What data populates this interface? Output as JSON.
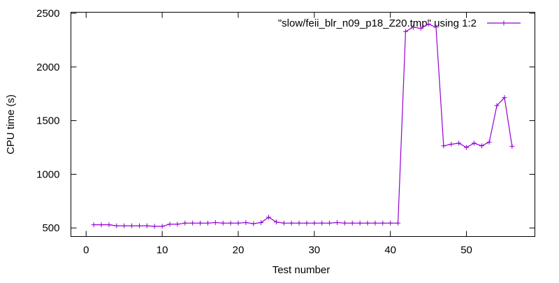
{
  "chart_data": {
    "type": "line",
    "title": "",
    "xlabel": "Test number",
    "ylabel": "CPU time (s)",
    "xlim": [
      -2,
      59
    ],
    "ylim": [
      420,
      2510
    ],
    "xticks": [
      0,
      10,
      20,
      30,
      40,
      50
    ],
    "yticks": [
      500,
      1000,
      1500,
      2000,
      2500
    ],
    "grid": false,
    "legend_position": "top-right",
    "series": [
      {
        "name": "\"slow/feii_blr_n09_p18_Z20.tmp\" using 1:2",
        "color": "#9400d3",
        "marker": "plus",
        "x": [
          1,
          2,
          3,
          4,
          5,
          6,
          7,
          8,
          9,
          10,
          11,
          12,
          13,
          14,
          15,
          16,
          17,
          18,
          19,
          20,
          21,
          22,
          23,
          24,
          25,
          26,
          27,
          28,
          29,
          30,
          31,
          32,
          33,
          34,
          35,
          36,
          37,
          38,
          39,
          40,
          41,
          42,
          43,
          44,
          45,
          46,
          47,
          48,
          49,
          50,
          51,
          52,
          53,
          54,
          55,
          56
        ],
        "values": [
          530,
          530,
          530,
          520,
          520,
          520,
          520,
          520,
          515,
          515,
          535,
          535,
          545,
          545,
          545,
          545,
          550,
          545,
          545,
          545,
          550,
          540,
          550,
          600,
          555,
          545,
          545,
          545,
          545,
          545,
          545,
          545,
          550,
          545,
          545,
          545,
          545,
          545,
          545,
          545,
          545,
          2330,
          2370,
          2360,
          2400,
          2370,
          1265,
          1280,
          1290,
          1250,
          1290,
          1265,
          1300,
          1640,
          1715,
          1260
        ]
      }
    ]
  }
}
